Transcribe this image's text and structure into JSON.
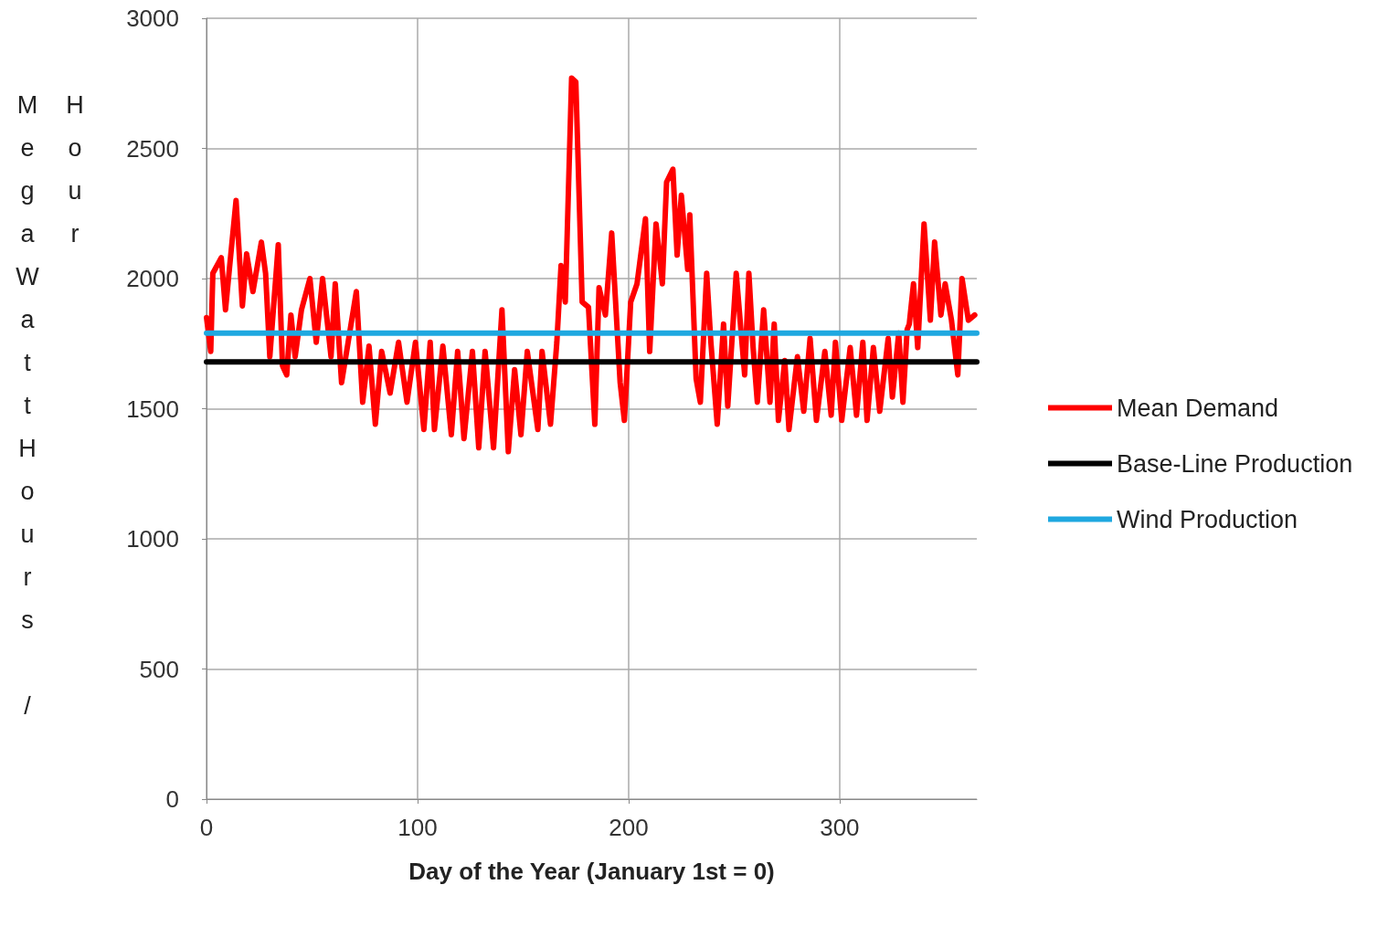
{
  "chart_data": {
    "type": "line",
    "xlabel": "Day of the Year (January 1st = 0)",
    "ylabel": "MegaWattHours / Hour",
    "xlim": [
      0,
      365
    ],
    "xticks": [
      0,
      100,
      200,
      300
    ],
    "ylim": [
      0,
      3000
    ],
    "yticks": [
      0,
      500,
      1000,
      1500,
      2000,
      2500,
      3000
    ],
    "grid": true,
    "legend": "right",
    "marker": "none",
    "line_style": "solid",
    "series": [
      {
        "name": "Mean Demand",
        "color": "#ff0000",
        "x": [
          0,
          2,
          3,
          7,
          9,
          11,
          14,
          17,
          19,
          22,
          26,
          28,
          30,
          34,
          36,
          38,
          40,
          42,
          45,
          49,
          52,
          55,
          59,
          61,
          64,
          71,
          74,
          77,
          80,
          83,
          87,
          91,
          95,
          99,
          103,
          106,
          108,
          112,
          116,
          119,
          122,
          126,
          129,
          132,
          136,
          140,
          143,
          146,
          149,
          152,
          157,
          159,
          163,
          166,
          168,
          170,
          173,
          175,
          178,
          181,
          184,
          186,
          189,
          192,
          196,
          198,
          201,
          204,
          208,
          210,
          213,
          216,
          218,
          221,
          223,
          225,
          228,
          229,
          232,
          234,
          237,
          239,
          242,
          245,
          247,
          251,
          255,
          257,
          259,
          261,
          264,
          267,
          269,
          271,
          274,
          276,
          280,
          283,
          286,
          289,
          293,
          296,
          298,
          301,
          305,
          308,
          311,
          313,
          316,
          319,
          323,
          325,
          328,
          330,
          332,
          333,
          335,
          337,
          340,
          343,
          345,
          348,
          350,
          353,
          356,
          358,
          361,
          364
        ],
        "values": [
          1850,
          1720,
          2020,
          2080,
          1880,
          2050,
          2300,
          1895,
          2095,
          1950,
          2140,
          2020,
          1700,
          2130,
          1665,
          1630,
          1860,
          1700,
          1880,
          2000,
          1755,
          2000,
          1700,
          1980,
          1600,
          1950,
          1525,
          1740,
          1440,
          1720,
          1560,
          1755,
          1525,
          1755,
          1420,
          1755,
          1420,
          1740,
          1400,
          1720,
          1385,
          1720,
          1350,
          1720,
          1350,
          1880,
          1335,
          1650,
          1400,
          1720,
          1420,
          1720,
          1440,
          1755,
          2050,
          1910,
          2770,
          2755,
          1910,
          1890,
          1440,
          1965,
          1860,
          2175,
          1600,
          1455,
          1910,
          1980,
          2230,
          1720,
          2210,
          1980,
          2370,
          2420,
          2090,
          2320,
          2035,
          2245,
          1615,
          1525,
          2020,
          1755,
          1440,
          1825,
          1510,
          2020,
          1630,
          2020,
          1735,
          1525,
          1880,
          1525,
          1825,
          1455,
          1685,
          1420,
          1700,
          1490,
          1770,
          1455,
          1720,
          1475,
          1755,
          1455,
          1735,
          1475,
          1755,
          1455,
          1735,
          1490,
          1770,
          1545,
          1790,
          1525,
          1805,
          1825,
          1980,
          1735,
          2210,
          1840,
          2140,
          1860,
          1980,
          1840,
          1630,
          2000,
          1840,
          1860
        ]
      },
      {
        "name": "Base-Line Production",
        "color": "#000000",
        "x": [
          0,
          365
        ],
        "values": [
          1680,
          1680
        ]
      },
      {
        "name": "Wind Production",
        "color": "#1fa8e0",
        "x": [
          0,
          365
        ],
        "values": [
          1790,
          1790
        ]
      }
    ]
  }
}
